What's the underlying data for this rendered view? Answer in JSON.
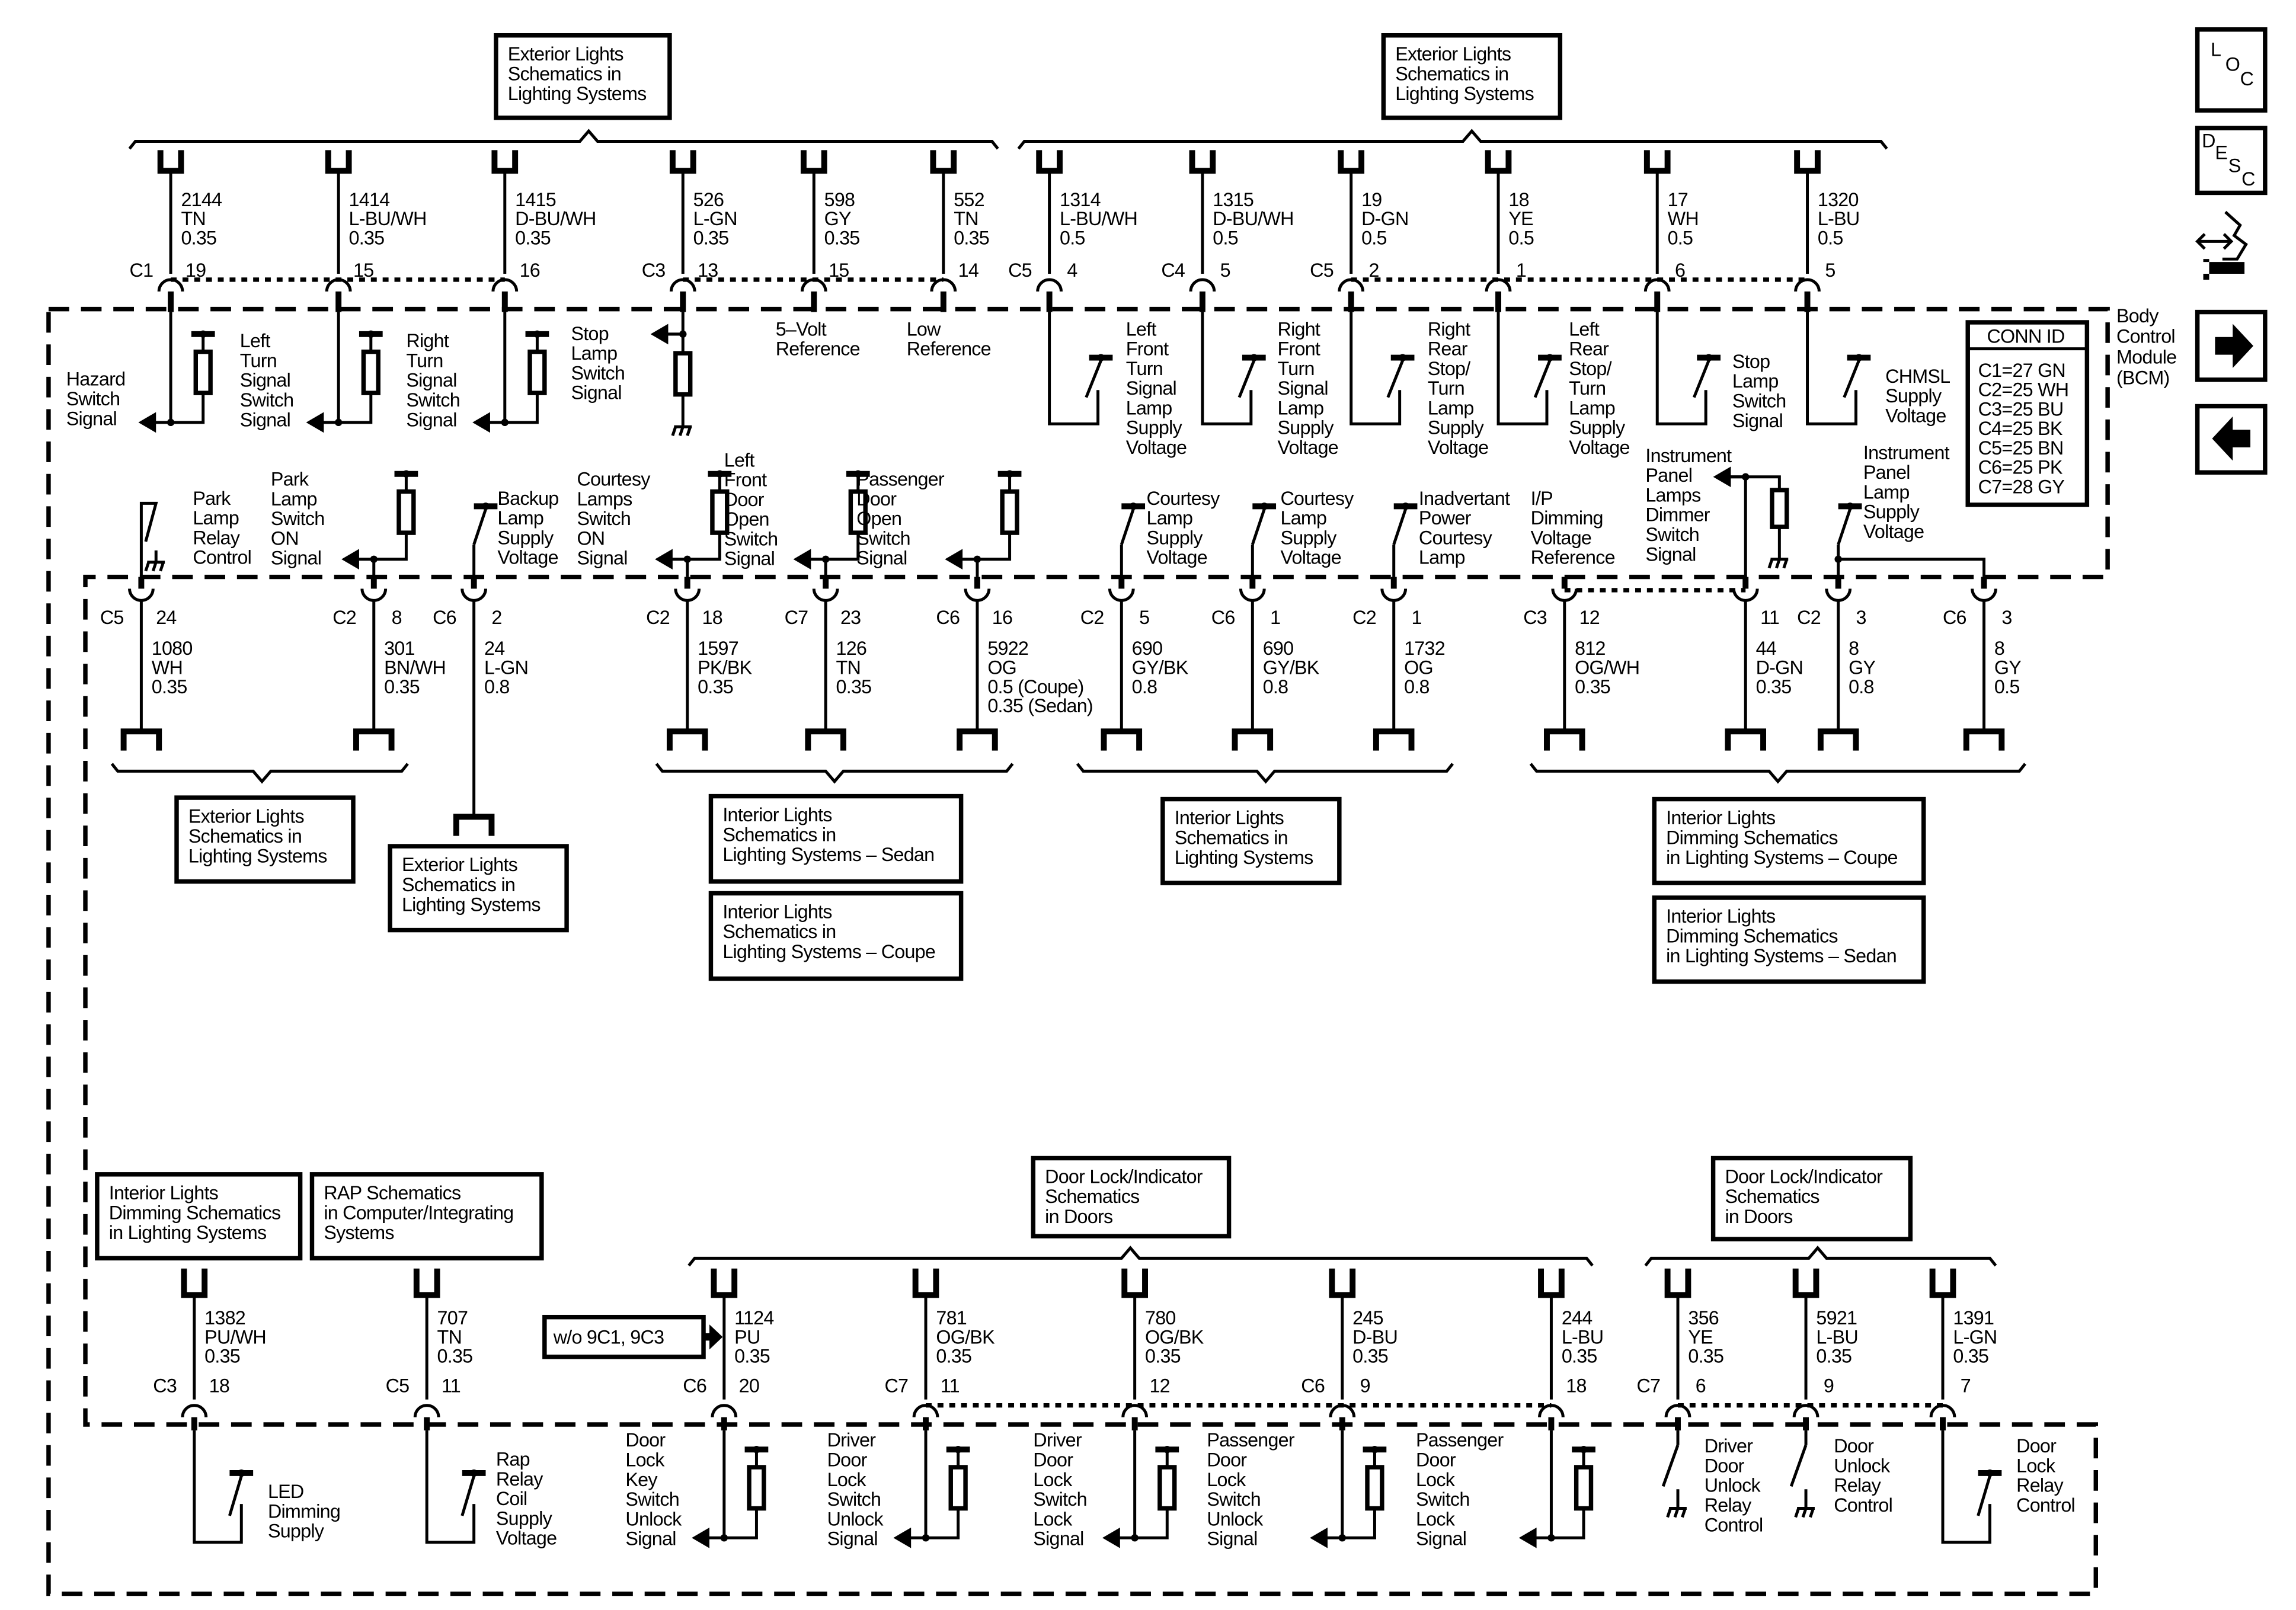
{
  "bcm": {
    "title": [
      "Body",
      "Control",
      "Module",
      "(BCM)"
    ]
  },
  "conn_id": {
    "title": "CONN ID",
    "entries": [
      "C1=27 GN",
      "C2=25 WH",
      "C3=25 BU",
      "C4=25 BK",
      "C5=25 BN",
      "C6=25 PK",
      "C7=28 GY"
    ]
  },
  "nav_icons": {
    "loc": {
      "icon": "location-icon",
      "letters": [
        "L",
        "O",
        "C"
      ]
    },
    "desc": {
      "icon": "description-icon",
      "letters": [
        "D",
        "E",
        "S",
        "C"
      ]
    },
    "harness": {
      "icon": "harness-connector-icon"
    },
    "next": {
      "icon": "arrow-right-icon"
    },
    "prev": {
      "icon": "arrow-left-icon"
    }
  },
  "note": "w/o 9C1, 9C3",
  "refs": [
    {
      "lines": [
        "Exterior Lights",
        "Schematics in",
        "Lighting Systems"
      ]
    },
    {
      "lines": [
        "Exterior Lights",
        "Schematics in",
        "Lighting Systems"
      ]
    },
    {
      "lines": [
        "Exterior Lights",
        "Schematics in",
        "Lighting Systems"
      ]
    },
    {
      "lines": [
        "Exterior Lights",
        "Schematics in",
        "Lighting Systems"
      ]
    },
    {
      "lines": [
        "Interior Lights",
        "Schematics in",
        "Lighting Systems – Sedan"
      ]
    },
    {
      "lines": [
        "Interior Lights",
        "Schematics in",
        "Lighting Systems – Coupe"
      ]
    },
    {
      "lines": [
        "Interior Lights",
        "Schematics in",
        "Lighting Systems"
      ]
    },
    {
      "lines": [
        "Interior Lights",
        "Dimming Schematics",
        "in Lighting Systems – Coupe"
      ]
    },
    {
      "lines": [
        "Interior Lights",
        "Dimming Schematics",
        "in Lighting Systems – Sedan"
      ]
    },
    {
      "lines": [
        "Interior Lights",
        "Dimming Schematics",
        "in Lighting Systems"
      ]
    },
    {
      "lines": [
        "RAP Schematics",
        "in Computer/Integrating",
        "Systems"
      ]
    },
    {
      "lines": [
        "Door Lock/Indicator",
        "Schematics",
        "in Doors"
      ]
    },
    {
      "lines": [
        "Door Lock/Indicator",
        "Schematics",
        "in Doors"
      ]
    }
  ],
  "rows": [
    {
      "circuits": [
        {
          "wire": "2144",
          "color": "TN",
          "size": [
            "0.35"
          ],
          "conn": "C1",
          "pin": "19",
          "internal": "pull-up-resistor",
          "label": [
            "Hazard",
            "Switch",
            "Signal"
          ]
        },
        {
          "wire": "1414",
          "color": "L-BU/WH",
          "size": [
            "0.35"
          ],
          "conn": "",
          "pin": "15",
          "internal": "pull-up-resistor",
          "label": [
            "Left",
            "Turn",
            "Signal",
            "Switch",
            "Signal"
          ]
        },
        {
          "wire": "1415",
          "color": "D-BU/WH",
          "size": [
            "0.35"
          ],
          "conn": "",
          "pin": "16",
          "internal": "pull-up-resistor",
          "label": [
            "Right",
            "Turn",
            "Signal",
            "Switch",
            "Signal"
          ]
        },
        {
          "wire": "526",
          "color": "L-GN",
          "size": [
            "0.35"
          ],
          "conn": "C3",
          "pin": "13",
          "internal": "pull-down-resistor",
          "label": [
            "Stop",
            "Lamp",
            "Switch",
            "Signal"
          ]
        },
        {
          "wire": "598",
          "color": "GY",
          "size": [
            "0.35"
          ],
          "conn": "",
          "pin": "15",
          "internal": "reference",
          "label": [
            "5–Volt",
            "Reference"
          ]
        },
        {
          "wire": "552",
          "color": "TN",
          "size": [
            "0.35"
          ],
          "conn": "",
          "pin": "14",
          "internal": "reference",
          "label": [
            "Low",
            "Reference"
          ]
        },
        {
          "wire": "1314",
          "color": "L-BU/WH",
          "size": [
            "0.5"
          ],
          "conn": "C5",
          "pin": "4",
          "internal": "switch",
          "label": [
            "Left",
            "Front",
            "Turn",
            "Signal",
            "Lamp",
            "Supply",
            "Voltage"
          ]
        },
        {
          "wire": "1315",
          "color": "D-BU/WH",
          "size": [
            "0.5"
          ],
          "conn": "C4",
          "pin": "5",
          "internal": "switch",
          "label": [
            "Right",
            "Front",
            "Turn",
            "Signal",
            "Lamp",
            "Supply",
            "Voltage"
          ]
        },
        {
          "wire": "19",
          "color": "D-GN",
          "size": [
            "0.5"
          ],
          "conn": "C5",
          "pin": "2",
          "internal": "switch",
          "label": [
            "Right",
            "Rear",
            "Stop/",
            "Turn",
            "Lamp",
            "Supply",
            "Voltage"
          ]
        },
        {
          "wire": "18",
          "color": "YE",
          "size": [
            "0.5"
          ],
          "conn": "",
          "pin": "1",
          "internal": "switch",
          "label": [
            "Left",
            "Rear",
            "Stop/",
            "Turn",
            "Lamp",
            "Supply",
            "Voltage"
          ]
        },
        {
          "wire": "17",
          "color": "WH",
          "size": [
            "0.5"
          ],
          "conn": "",
          "pin": "6",
          "internal": "switch",
          "label": [
            "Stop",
            "Lamp",
            "Switch",
            "Signal"
          ]
        },
        {
          "wire": "1320",
          "color": "L-BU",
          "size": [
            "0.5"
          ],
          "conn": "",
          "pin": "5",
          "internal": "switch",
          "label": [
            "CHMSL",
            "Supply",
            "Voltage"
          ]
        }
      ]
    },
    {
      "circuits": [
        {
          "wire": "1080",
          "color": "WH",
          "size": [
            "0.35"
          ],
          "conn": "C5",
          "pin": "24",
          "internal": "relay-ground",
          "label": [
            "Park",
            "Lamp",
            "Relay",
            "Control"
          ]
        },
        {
          "wire": "301",
          "color": "BN/WH",
          "size": [
            "0.35"
          ],
          "conn": "C2",
          "pin": "8",
          "internal": "pull-up-resistor",
          "label": [
            "Park",
            "Lamp",
            "Switch",
            "ON",
            "Signal"
          ]
        },
        {
          "wire": "24",
          "color": "L-GN",
          "size": [
            "0.8"
          ],
          "conn": "C6",
          "pin": "2",
          "internal": "switch",
          "label": [
            "Backup",
            "Lamp",
            "Supply",
            "Voltage"
          ]
        },
        {
          "wire": "1597",
          "color": "PK/BK",
          "size": [
            "0.35"
          ],
          "conn": "C2",
          "pin": "18",
          "internal": "pull-up-resistor",
          "label": [
            "Courtesy",
            "Lamps",
            "Switch",
            "ON",
            "Signal"
          ]
        },
        {
          "wire": "126",
          "color": "TN",
          "size": [
            "0.35"
          ],
          "conn": "C7",
          "pin": "23",
          "internal": "pull-up-resistor",
          "label": [
            "Left",
            "Front",
            "Door",
            "Open",
            "Switch",
            "Signal"
          ]
        },
        {
          "wire": "5922",
          "color": "OG",
          "size": [
            "0.5 (Coupe)",
            "0.35 (Sedan)"
          ],
          "conn": "C6",
          "pin": "16",
          "internal": "pull-up-resistor",
          "label": [
            "Passenger",
            "Door",
            "Open",
            "Switch",
            "Signal"
          ]
        },
        {
          "wire": "690",
          "color": "GY/BK",
          "size": [
            "0.8"
          ],
          "conn": "C2",
          "pin": "5",
          "internal": "switch",
          "label": [
            "Courtesy",
            "Lamp",
            "Supply",
            "Voltage"
          ]
        },
        {
          "wire": "690",
          "color": "GY/BK",
          "size": [
            "0.8"
          ],
          "conn": "C6",
          "pin": "1",
          "internal": "switch",
          "label": [
            "Courtesy",
            "Lamp",
            "Supply",
            "Voltage"
          ]
        },
        {
          "wire": "1732",
          "color": "OG",
          "size": [
            "0.8"
          ],
          "conn": "C2",
          "pin": "1",
          "internal": "switch",
          "label": [
            "Inadvertant",
            "Power",
            "Courtesy",
            "Lamp"
          ]
        },
        {
          "wire": "812",
          "color": "OG/WH",
          "size": [
            "0.35"
          ],
          "conn": "C3",
          "pin": "12",
          "internal": "reference",
          "label": [
            "I/P",
            "Dimming",
            "Voltage",
            "Reference"
          ]
        },
        {
          "wire": "44",
          "color": "D-GN",
          "size": [
            "0.35"
          ],
          "conn": "",
          "pin": "11",
          "internal": "dimmer-resistor",
          "label": [
            "Instrument",
            "Panel",
            "Lamps",
            "Dimmer",
            "Switch",
            "Signal"
          ]
        },
        {
          "wire": "8",
          "color": "GY",
          "size": [
            "0.8"
          ],
          "conn": "C2",
          "pin": "3",
          "internal": "switch-branch",
          "label": [
            "Instrument",
            "Panel",
            "Lamp",
            "Supply",
            "Voltage"
          ]
        },
        {
          "wire": "8",
          "color": "GY",
          "size": [
            "0.5"
          ],
          "conn": "C6",
          "pin": "3",
          "internal": "branch",
          "label": []
        }
      ]
    },
    {
      "circuits": [
        {
          "wire": "1382",
          "color": "PU/WH",
          "size": [
            "0.35"
          ],
          "conn": "C3",
          "pin": "18",
          "internal": "switch",
          "label": [
            "LED",
            "Dimming",
            "Supply"
          ]
        },
        {
          "wire": "707",
          "color": "TN",
          "size": [
            "0.35"
          ],
          "conn": "C5",
          "pin": "11",
          "internal": "switch",
          "label": [
            "Rap",
            "Relay",
            "Coil",
            "Supply",
            "Voltage"
          ]
        },
        {
          "wire": "1124",
          "color": "PU",
          "size": [
            "0.35"
          ],
          "conn": "C6",
          "pin": "20",
          "internal": "pull-up-resistor",
          "label": [
            "Door",
            "Lock",
            "Key",
            "Switch",
            "Unlock",
            "Signal"
          ]
        },
        {
          "wire": "781",
          "color": "OG/BK",
          "size": [
            "0.35"
          ],
          "conn": "C7",
          "pin": "11",
          "internal": "pull-up-resistor",
          "label": [
            "Driver",
            "Door",
            "Lock",
            "Switch",
            "Unlock",
            "Signal"
          ]
        },
        {
          "wire": "780",
          "color": "OG/BK",
          "size": [
            "0.35"
          ],
          "conn": "",
          "pin": "12",
          "internal": "pull-up-resistor",
          "label": [
            "Driver",
            "Door",
            "Lock",
            "Switch",
            "Lock",
            "Signal"
          ]
        },
        {
          "wire": "245",
          "color": "D-BU",
          "size": [
            "0.35"
          ],
          "conn": "C6",
          "pin": "9",
          "internal": "pull-up-resistor",
          "label": [
            "Passenger",
            "Door",
            "Lock",
            "Switch",
            "Unlock",
            "Signal"
          ]
        },
        {
          "wire": "244",
          "color": "L-BU",
          "size": [
            "0.35"
          ],
          "conn": "",
          "pin": "18",
          "internal": "pull-up-resistor",
          "label": [
            "Passenger",
            "Door",
            "Lock",
            "Switch",
            "Lock",
            "Signal"
          ]
        },
        {
          "wire": "356",
          "color": "YE",
          "size": [
            "0.35"
          ],
          "conn": "C7",
          "pin": "6",
          "internal": "ground-switch",
          "label": [
            "Driver",
            "Door",
            "Unlock",
            "Relay",
            "Control"
          ]
        },
        {
          "wire": "5921",
          "color": "L-BU",
          "size": [
            "0.35"
          ],
          "conn": "",
          "pin": "9",
          "internal": "ground-switch",
          "label": [
            "Door",
            "Unlock",
            "Relay",
            "Control"
          ]
        },
        {
          "wire": "1391",
          "color": "L-GN",
          "size": [
            "0.35"
          ],
          "conn": "",
          "pin": "7",
          "internal": "switch",
          "label": [
            "Door",
            "Lock",
            "Relay",
            "Control"
          ]
        }
      ]
    }
  ]
}
